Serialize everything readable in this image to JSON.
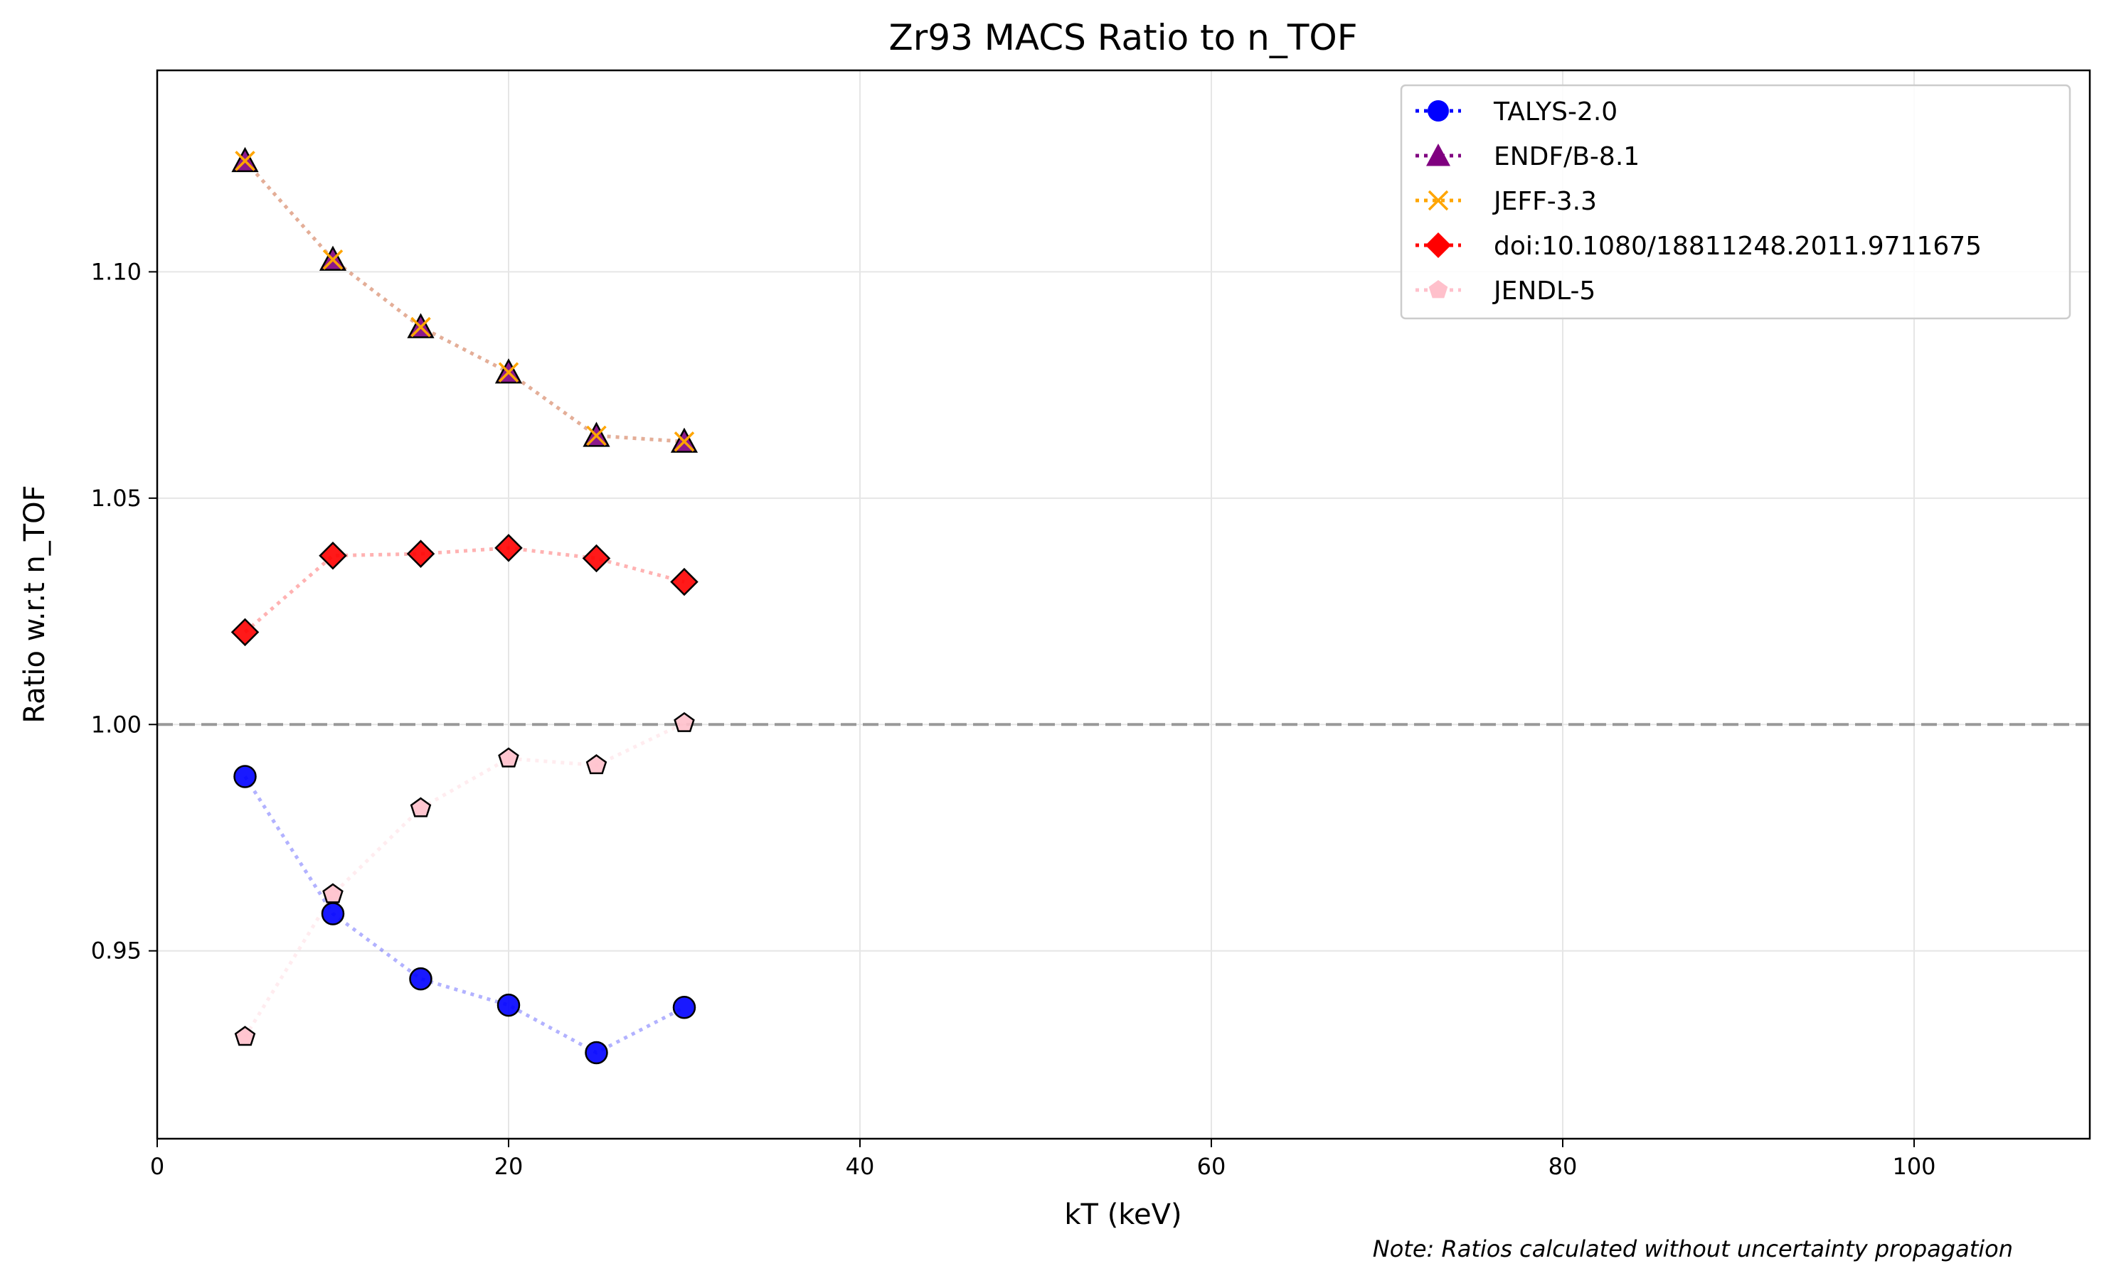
{
  "chart_data": {
    "type": "line",
    "title": "Zr93 MACS Ratio to n_TOF",
    "xlabel": "kT (keV)",
    "ylabel": "Ratio w.r.t n_TOF",
    "xlim": [
      0,
      110
    ],
    "ylim": [
      0.9085,
      1.1445
    ],
    "x_ticks": [
      0,
      20,
      40,
      60,
      80,
      100
    ],
    "y_ticks": [
      0.95,
      1.0,
      1.05,
      1.1
    ],
    "x_tick_labels": [
      "0",
      "20",
      "40",
      "60",
      "80",
      "100"
    ],
    "y_tick_labels": [
      "0.95",
      "1.00",
      "1.05",
      "1.10"
    ],
    "grid": true,
    "legend_position": "top-right",
    "reference_line": {
      "y": 1.0,
      "style": "dashed",
      "color": "#999999"
    },
    "note": "Note: Ratios calculated without uncertainty propagation",
    "x": [
      5,
      10,
      15,
      20,
      25,
      30
    ],
    "series": [
      {
        "name": "TALYS-2.0",
        "marker": "circle",
        "color": "#0000ff",
        "values": [
          0.9885,
          0.9582,
          0.9438,
          0.938,
          0.9275,
          0.9375
        ]
      },
      {
        "name": "ENDF/B-8.1",
        "marker": "triangle",
        "color": "#800080",
        "values": [
          1.1245,
          1.1027,
          1.0878,
          1.0778,
          1.0638,
          1.0625
        ]
      },
      {
        "name": "JEFF-3.3",
        "marker": "x",
        "color": "#ffa500",
        "values": [
          1.1245,
          1.1027,
          1.0878,
          1.0778,
          1.0638,
          1.0625
        ]
      },
      {
        "name": "doi:10.1080/18811248.2011.9711675",
        "marker": "diamond",
        "color": "#ff0000",
        "values": [
          1.0204,
          1.0373,
          1.0377,
          1.039,
          1.0367,
          1.0315
        ]
      },
      {
        "name": "JENDL-5",
        "marker": "pentagon",
        "color": "#ffc0cb",
        "values": [
          0.931,
          0.9625,
          0.9815,
          0.9925,
          0.991,
          1.0003
        ]
      }
    ]
  }
}
